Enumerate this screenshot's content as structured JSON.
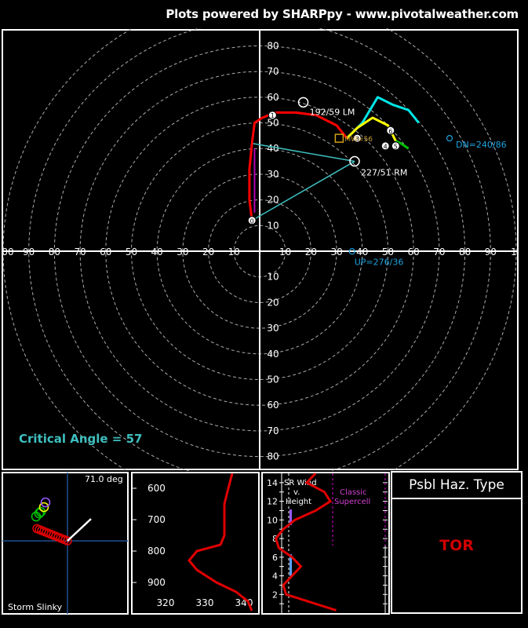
{
  "header": {
    "credit": "Plots powered by SHARPpy - www.pivotalweather.com"
  },
  "hodograph": {
    "critical_angle_text": "Critical Angle = 57",
    "labels": {
      "lm": "192/59 LM",
      "rm": "227/51 RM",
      "dn": "DN=240/86",
      "up": "UP=276/36",
      "mean": "MW=56"
    },
    "colors": {
      "0-3km": "#ff0000",
      "3-6km": "#ffff00",
      "6-9km": "#00c000",
      "9-12km": "#00e5e5",
      "inflow": "#3fbfbf"
    }
  },
  "chart_data": [
    {
      "type": "line",
      "title": "Hodograph",
      "xlim": [
        -100,
        100
      ],
      "ylim": [
        -85,
        85
      ],
      "rings": [
        10,
        20,
        30,
        40,
        50,
        60,
        70,
        80,
        90,
        100
      ],
      "x_tick_labels": [
        "00",
        "90",
        "80",
        "70",
        "60",
        "50",
        "40",
        "30",
        "20",
        "10",
        "10",
        "20",
        "30",
        "40",
        "50",
        "60",
        "70",
        "80",
        "90",
        "1"
      ],
      "y_tick_labels_pos": [
        "10",
        "20",
        "30",
        "40",
        "50",
        "60",
        "70",
        "80"
      ],
      "y_tick_labels_neg": [
        "10",
        "20",
        "30",
        "40",
        "50",
        "60",
        "70",
        "80"
      ],
      "series": [
        {
          "segment": "0-3km",
          "points": [
            [
              -3,
              12
            ],
            [
              -4,
              20
            ],
            [
              -4,
              32
            ],
            [
              -3,
              42
            ],
            [
              -2,
              50
            ],
            [
              1,
              52
            ],
            [
              6,
              54
            ],
            [
              14,
              54
            ],
            [
              22,
              53
            ],
            [
              30,
              49
            ],
            [
              34,
              44
            ]
          ]
        },
        {
          "segment": "3-6km",
          "points": [
            [
              34,
              44
            ],
            [
              38,
              48
            ],
            [
              44,
              52
            ],
            [
              50,
              49
            ],
            [
              53,
              43
            ]
          ]
        },
        {
          "segment": "6-9km",
          "points": [
            [
              53,
              43
            ],
            [
              55,
              42
            ],
            [
              58,
              40
            ]
          ]
        },
        {
          "segment": "9-12km",
          "points": [
            [
              34,
              44
            ],
            [
              40,
              50
            ],
            [
              46,
              60
            ],
            [
              52,
              57
            ],
            [
              58,
              55
            ],
            [
              62,
              50
            ]
          ]
        }
      ],
      "height_markers": [
        {
          "label": "0",
          "x": -3,
          "y": 12
        },
        {
          "label": "1",
          "x": 5,
          "y": 53
        },
        {
          "label": "3",
          "x": 38,
          "y": 44
        },
        {
          "label": "4",
          "x": 49,
          "y": 41
        },
        {
          "label": "5",
          "x": 53,
          "y": 41
        },
        {
          "label": "6",
          "x": 51,
          "y": 47
        }
      ],
      "storm_motion": {
        "lm": [
          17,
          58
        ],
        "rm": [
          37,
          35
        ]
      },
      "dn": [
        74,
        44
      ],
      "up": [
        36,
        -1
      ],
      "mean_wind": [
        31,
        44
      ]
    },
    {
      "type": "scatter",
      "title": "Storm Slinky",
      "angle_text": "71.0 deg"
    },
    {
      "type": "line",
      "title": "Theta-E",
      "x_ticks": [
        320,
        330,
        340
      ],
      "y_ticks": [
        600,
        700,
        800,
        900
      ],
      "xlim": [
        315,
        343
      ],
      "ylim": [
        550,
        1000
      ],
      "points": [
        [
          337,
          540
        ],
        [
          336,
          600
        ],
        [
          335,
          650
        ],
        [
          335,
          700
        ],
        [
          335,
          750
        ],
        [
          334,
          780
        ],
        [
          328,
          800
        ],
        [
          326,
          830
        ],
        [
          328,
          860
        ],
        [
          333,
          900
        ],
        [
          338,
          930
        ],
        [
          341,
          960
        ],
        [
          342,
          990
        ]
      ]
    },
    {
      "type": "line",
      "title": "SR Wind v. Height",
      "labels": [
        "SR Wind",
        "v.",
        "Height"
      ],
      "annotation": [
        "Classic",
        "Supercell"
      ],
      "y_ticks": [
        2,
        4,
        6,
        8,
        10,
        12,
        14
      ],
      "ylim": [
        0,
        15
      ],
      "xlim": [
        0,
        80
      ],
      "points": [
        [
          44,
          0.3
        ],
        [
          30,
          1
        ],
        [
          10,
          2
        ],
        [
          8,
          3
        ],
        [
          14,
          4
        ],
        [
          20,
          5
        ],
        [
          14,
          6
        ],
        [
          5,
          7
        ],
        [
          3,
          8
        ],
        [
          8,
          9
        ],
        [
          16,
          10
        ],
        [
          30,
          11
        ],
        [
          40,
          12
        ],
        [
          36,
          13
        ],
        [
          24,
          14
        ],
        [
          30,
          15
        ]
      ]
    }
  ],
  "hazard": {
    "title": "Psbl Haz. Type",
    "value": "TOR"
  }
}
